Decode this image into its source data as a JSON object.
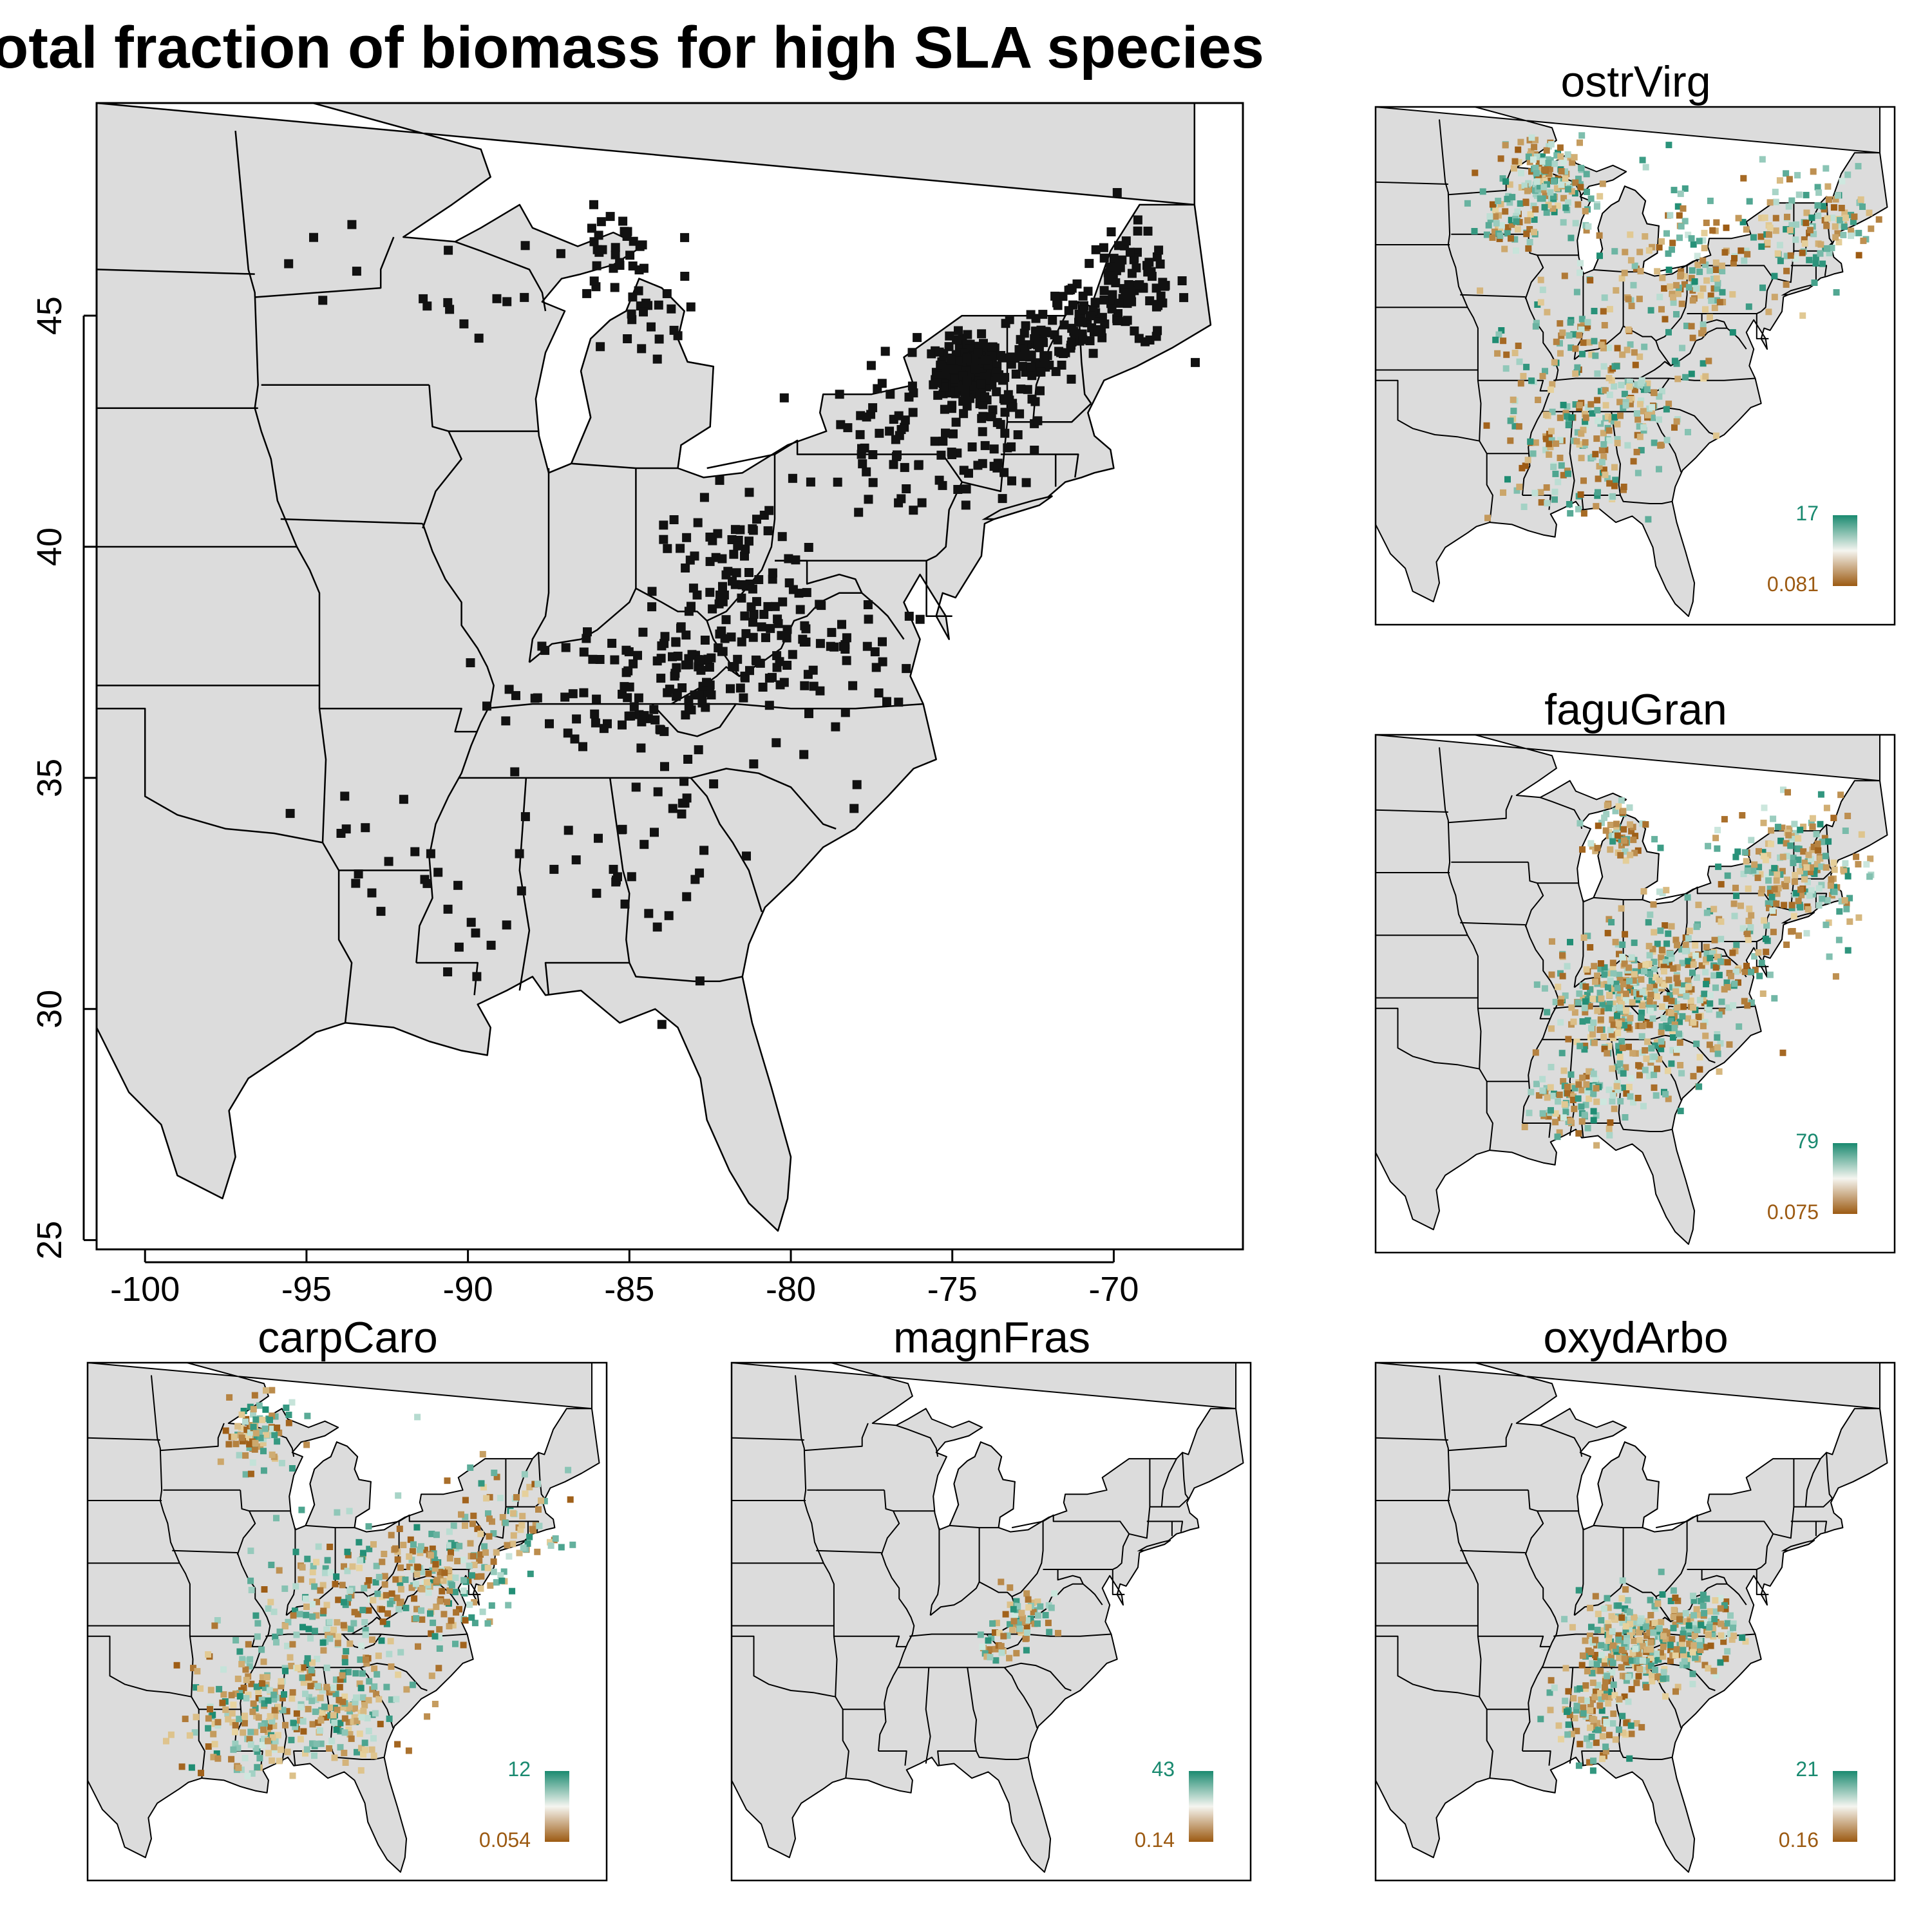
{
  "title": "otal fraction of biomass for high SLA species",
  "colors": {
    "land": "#dcdcdc",
    "border": "#000000",
    "water": "#ffffff",
    "point_main": "#111111",
    "high": "#1a8a70",
    "mid": "#f5f5f0",
    "low": "#9c5a12"
  },
  "main": {
    "x_axis": {
      "range": [
        -101.5,
        -66
      ],
      "ticks": [
        "-100",
        "-95",
        "-90",
        "-85",
        "-80",
        "-75",
        "-70"
      ]
    },
    "y_axis": {
      "range": [
        24.8,
        49.6
      ],
      "ticks": [
        "25",
        "30",
        "35",
        "40",
        "45"
      ]
    }
  },
  "panels": [
    {
      "id": "ostrVirg",
      "title": "ostrVirg",
      "max_label": "17",
      "min_label": "0.081"
    },
    {
      "id": "faguGran",
      "title": "faguGran",
      "max_label": "79",
      "min_label": "0.075"
    },
    {
      "id": "carpCaro",
      "title": "carpCaro",
      "max_label": "12",
      "min_label": "0.054"
    },
    {
      "id": "magnFras",
      "title": "magnFras",
      "max_label": "43",
      "min_label": "0.14"
    },
    {
      "id": "oxydArbo",
      "title": "oxydArbo",
      "max_label": "21",
      "min_label": "0.16"
    }
  ]
}
